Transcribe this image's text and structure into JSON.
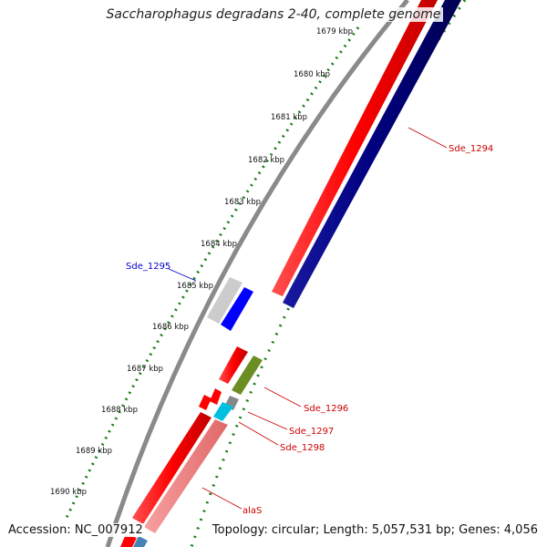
{
  "title": "Saccharophagus degradans 2-40, complete genome",
  "footer": {
    "accession": "Accession: NC_007912",
    "summary": "Topology: circular; Length: 5,057,531 bp; Genes: 4,056"
  },
  "colors": {
    "forward_cds": "#ff0000",
    "reverse_cds": "#000080",
    "other_cds": "#0000ff",
    "highlight_pink": "#f08080",
    "olive": "#6b8e23",
    "cyan": "#00c0e0",
    "gray_feature": "#c8c8c8",
    "backbone": "#888888",
    "ticks": "#1a7a1a"
  },
  "scale_labels": [
    "1679 kbp",
    "1680 kbp",
    "1681 kbp",
    "1682 kbp",
    "1683 kbp",
    "1684 kbp",
    "1685 kbp",
    "1686 kbp",
    "1687 kbp",
    "1688 kbp",
    "1689 kbp",
    "1690 kbp"
  ],
  "gene_labels": {
    "sde_1294": "Sde_1294",
    "sde_1295": "Sde_1295",
    "sde_1296": "Sde_1296",
    "sde_1297": "Sde_1297",
    "sde_1298": "Sde_1298",
    "alaS": "alaS"
  }
}
